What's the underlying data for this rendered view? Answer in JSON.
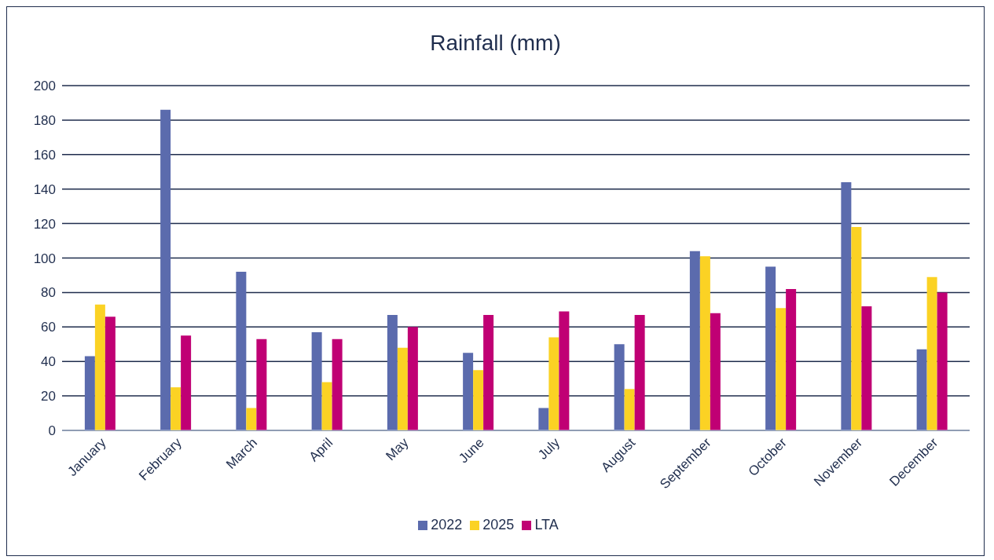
{
  "chart_data": {
    "type": "bar",
    "title": "Rainfall (mm)",
    "categories": [
      "January",
      "February",
      "March",
      "April",
      "May",
      "June",
      "July",
      "August",
      "September",
      "October",
      "November",
      "December"
    ],
    "series": [
      {
        "name": "2022",
        "color": "#5b6bad",
        "values": [
          43,
          186,
          92,
          57,
          67,
          45,
          13,
          50,
          104,
          95,
          144,
          47
        ]
      },
      {
        "name": "2025",
        "color": "#fbd224",
        "values": [
          73,
          25,
          13,
          28,
          48,
          35,
          54,
          24,
          101,
          71,
          118,
          89
        ]
      },
      {
        "name": "LTA",
        "color": "#c00074",
        "values": [
          66,
          55,
          53,
          53,
          60,
          67,
          69,
          67,
          68,
          82,
          72,
          80
        ]
      }
    ],
    "ylim": [
      0,
      200
    ],
    "yticks": [
      0,
      20,
      40,
      60,
      80,
      100,
      120,
      140,
      160,
      180,
      200
    ],
    "grid": "y",
    "legend": "bottom"
  }
}
